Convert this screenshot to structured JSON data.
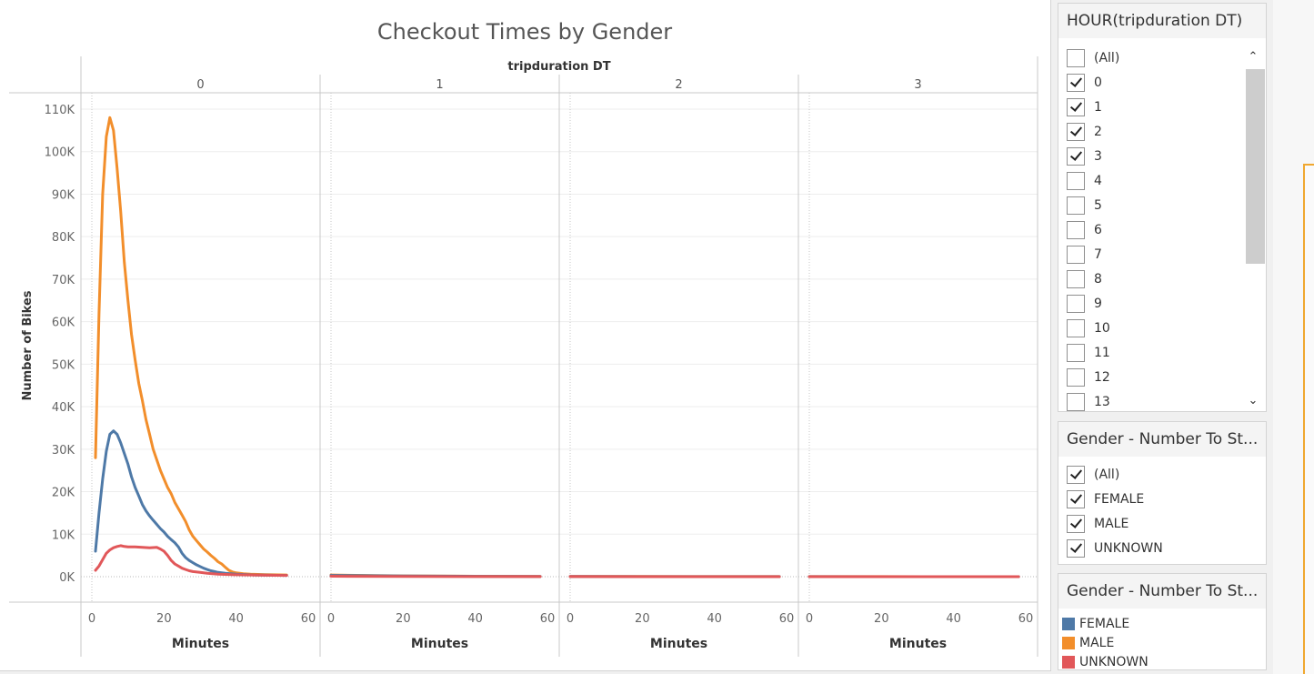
{
  "chart_data": {
    "type": "line",
    "title": "Checkout Times by Gender",
    "column_header": "tripduration DT",
    "panes": [
      "0",
      "1",
      "2",
      "3"
    ],
    "xlabel": "Minutes",
    "ylabel": "Number of Bikes",
    "xlim": [
      0,
      60
    ],
    "ylim": [
      0,
      115000
    ],
    "x_ticks": [
      0,
      20,
      40,
      60
    ],
    "y_ticks": [
      0,
      10000,
      20000,
      30000,
      40000,
      50000,
      60000,
      70000,
      80000,
      90000,
      100000,
      110000
    ],
    "y_tick_labels": [
      "0K",
      "10K",
      "20K",
      "30K",
      "40K",
      "50K",
      "60K",
      "70K",
      "80K",
      "90K",
      "100K",
      "110K"
    ],
    "series": [
      {
        "name": "MALE",
        "color": "#f28e2b",
        "panes": [
          [
            [
              1,
              28000
            ],
            [
              2,
              62000
            ],
            [
              3,
              90000
            ],
            [
              4,
              103500
            ],
            [
              5,
              108000
            ],
            [
              6,
              105000
            ],
            [
              7,
              96000
            ],
            [
              8,
              86000
            ],
            [
              9,
              74000
            ],
            [
              10,
              65000
            ],
            [
              11,
              57000
            ],
            [
              12,
              51000
            ],
            [
              13,
              45500
            ],
            [
              14,
              41500
            ],
            [
              15,
              37000
            ],
            [
              16,
              33500
            ],
            [
              17,
              30000
            ],
            [
              18,
              27500
            ],
            [
              19,
              25000
            ],
            [
              20,
              23000
            ],
            [
              21,
              21000
            ],
            [
              22,
              19500
            ],
            [
              23,
              17500
            ],
            [
              24,
              16000
            ],
            [
              25,
              14500
            ],
            [
              26,
              13000
            ],
            [
              27,
              11000
            ],
            [
              28,
              9500
            ],
            [
              29,
              8500
            ],
            [
              30,
              7500
            ],
            [
              31,
              6500
            ],
            [
              32,
              5800
            ],
            [
              33,
              5000
            ],
            [
              34,
              4300
            ],
            [
              35,
              3500
            ],
            [
              36,
              3000
            ],
            [
              37,
              2200
            ],
            [
              38,
              1500
            ],
            [
              39,
              1100
            ],
            [
              40,
              900
            ],
            [
              42,
              700
            ],
            [
              44,
              600
            ],
            [
              48,
              500
            ],
            [
              54,
              400
            ]
          ],
          [
            [
              0,
              400
            ],
            [
              20,
              200
            ],
            [
              40,
              100
            ],
            [
              58,
              60
            ]
          ],
          [
            [
              0,
              60
            ],
            [
              20,
              40
            ],
            [
              40,
              30
            ],
            [
              58,
              20
            ]
          ],
          [
            [
              0,
              20
            ],
            [
              20,
              15
            ],
            [
              40,
              10
            ],
            [
              58,
              10
            ]
          ]
        ]
      },
      {
        "name": "FEMALE",
        "color": "#4e79a7",
        "panes": [
          [
            [
              1,
              6000
            ],
            [
              2,
              15000
            ],
            [
              3,
              23000
            ],
            [
              4,
              29500
            ],
            [
              5,
              33500
            ],
            [
              6,
              34300
            ],
            [
              7,
              33500
            ],
            [
              8,
              31500
            ],
            [
              9,
              29000
            ],
            [
              10,
              26500
            ],
            [
              11,
              23500
            ],
            [
              12,
              21000
            ],
            [
              13,
              19000
            ],
            [
              14,
              17000
            ],
            [
              15,
              15500
            ],
            [
              16,
              14300
            ],
            [
              17,
              13300
            ],
            [
              18,
              12300
            ],
            [
              19,
              11300
            ],
            [
              20,
              10500
            ],
            [
              21,
              9500
            ],
            [
              22,
              8700
            ],
            [
              23,
              8000
            ],
            [
              24,
              7000
            ],
            [
              25,
              5500
            ],
            [
              26,
              4500
            ],
            [
              27,
              3800
            ],
            [
              28,
              3300
            ],
            [
              29,
              2800
            ],
            [
              30,
              2400
            ],
            [
              31,
              2000
            ],
            [
              32,
              1700
            ],
            [
              33,
              1400
            ],
            [
              34,
              1200
            ],
            [
              35,
              1000
            ],
            [
              37,
              800
            ],
            [
              40,
              600
            ],
            [
              45,
              400
            ],
            [
              54,
              300
            ]
          ],
          [
            [
              0,
              300
            ],
            [
              20,
              150
            ],
            [
              40,
              80
            ],
            [
              58,
              50
            ]
          ],
          [
            [
              0,
              50
            ],
            [
              20,
              30
            ],
            [
              40,
              20
            ],
            [
              58,
              15
            ]
          ],
          [
            [
              0,
              15
            ],
            [
              20,
              10
            ],
            [
              40,
              8
            ],
            [
              58,
              5
            ]
          ]
        ]
      },
      {
        "name": "UNKNOWN",
        "color": "#e15759",
        "panes": [
          [
            [
              1,
              1500
            ],
            [
              2,
              2500
            ],
            [
              3,
              4000
            ],
            [
              4,
              5500
            ],
            [
              5,
              6300
            ],
            [
              6,
              6800
            ],
            [
              7,
              7100
            ],
            [
              8,
              7300
            ],
            [
              9,
              7100
            ],
            [
              10,
              7000
            ],
            [
              12,
              7000
            ],
            [
              14,
              6900
            ],
            [
              16,
              6800
            ],
            [
              18,
              6900
            ],
            [
              19,
              6500
            ],
            [
              20,
              6000
            ],
            [
              21,
              5000
            ],
            [
              22,
              3800
            ],
            [
              23,
              3000
            ],
            [
              24,
              2500
            ],
            [
              25,
              2000
            ],
            [
              26,
              1700
            ],
            [
              27,
              1400
            ],
            [
              28,
              1200
            ],
            [
              30,
              1000
            ],
            [
              32,
              800
            ],
            [
              35,
              600
            ],
            [
              40,
              450
            ],
            [
              48,
              350
            ],
            [
              54,
              300
            ]
          ],
          [
            [
              0,
              100
            ],
            [
              20,
              50
            ],
            [
              40,
              30
            ],
            [
              58,
              20
            ]
          ],
          [
            [
              0,
              20
            ],
            [
              20,
              10
            ],
            [
              40,
              8
            ],
            [
              58,
              5
            ]
          ],
          [
            [
              0,
              8
            ],
            [
              20,
              5
            ],
            [
              40,
              3
            ],
            [
              58,
              2
            ]
          ]
        ]
      }
    ]
  },
  "hour_filter": {
    "title": "HOUR(tripduration DT)",
    "items": [
      {
        "label": "(All)",
        "checked": false
      },
      {
        "label": "0",
        "checked": true
      },
      {
        "label": "1",
        "checked": true
      },
      {
        "label": "2",
        "checked": true
      },
      {
        "label": "3",
        "checked": true
      },
      {
        "label": "4",
        "checked": false
      },
      {
        "label": "5",
        "checked": false
      },
      {
        "label": "6",
        "checked": false
      },
      {
        "label": "7",
        "checked": false
      },
      {
        "label": "8",
        "checked": false
      },
      {
        "label": "9",
        "checked": false
      },
      {
        "label": "10",
        "checked": false
      },
      {
        "label": "11",
        "checked": false
      },
      {
        "label": "12",
        "checked": false
      },
      {
        "label": "13",
        "checked": false
      }
    ]
  },
  "gender_filter": {
    "title": "Gender - Number To St...",
    "items": [
      {
        "label": "(All)",
        "checked": true
      },
      {
        "label": "FEMALE",
        "checked": true
      },
      {
        "label": "MALE",
        "checked": true
      },
      {
        "label": "UNKNOWN",
        "checked": true
      }
    ]
  },
  "gender_legend": {
    "title": "Gender - Number To St...",
    "items": [
      {
        "label": "FEMALE",
        "color": "#4e79a7"
      },
      {
        "label": "MALE",
        "color": "#f28e2b"
      },
      {
        "label": "UNKNOWN",
        "color": "#e15759"
      }
    ]
  }
}
